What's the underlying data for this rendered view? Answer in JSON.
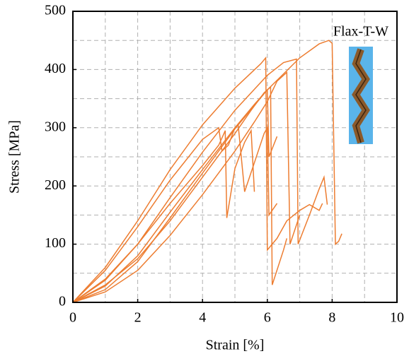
{
  "chart_data": {
    "type": "line",
    "x_label": "Strain [%]",
    "y_label": "Stress [MPa]",
    "annotation": "Flax-T-W",
    "xlim": [
      0,
      10
    ],
    "ylim": [
      0,
      500
    ],
    "xticks": [
      0,
      2,
      4,
      6,
      8,
      10
    ],
    "yticks": [
      0,
      100,
      200,
      300,
      400,
      500
    ],
    "x_minor_grid": [
      1,
      3,
      5,
      7,
      9
    ],
    "y_minor_grid": [
      50,
      150,
      250,
      350,
      450
    ],
    "grid": true,
    "series": [
      {
        "color": "#ed7d31",
        "x": [
          0,
          1,
          2,
          3,
          4,
          5,
          6,
          7,
          7.6,
          7.9,
          8.0,
          8.1,
          8.2,
          8.3
        ],
        "values": [
          0,
          22,
          70,
          145,
          222,
          298,
          365,
          420,
          444,
          450,
          445,
          100,
          105,
          118
        ]
      },
      {
        "color": "#ed7d31",
        "x": [
          0,
          1,
          2,
          3,
          4,
          5,
          5.8,
          5.95,
          6.0,
          6.3,
          6.6,
          7.0,
          7.3,
          7.6,
          7.7
        ],
        "values": [
          0,
          60,
          140,
          228,
          305,
          368,
          410,
          420,
          90,
          110,
          140,
          158,
          168,
          158,
          170
        ]
      },
      {
        "color": "#ed7d31",
        "x": [
          0,
          1,
          2,
          3,
          4,
          5,
          6,
          6.5,
          6.9,
          6.95,
          7.3,
          7.6,
          7.75,
          7.85
        ],
        "values": [
          0,
          38,
          100,
          180,
          258,
          330,
          390,
          412,
          418,
          100,
          150,
          195,
          215,
          168
        ]
      },
      {
        "color": "#ed7d31",
        "x": [
          0,
          1,
          2,
          3,
          4,
          4.5,
          4.6,
          4.8,
          5.0,
          5.1,
          5.3,
          5.6,
          5.9,
          6.0,
          6.05,
          6.3
        ],
        "values": [
          0,
          55,
          130,
          210,
          280,
          300,
          260,
          270,
          300,
          305,
          190,
          240,
          290,
          300,
          150,
          170
        ]
      },
      {
        "color": "#ed7d31",
        "x": [
          0,
          1,
          2,
          3,
          4,
          5,
          5.5,
          5.9,
          6.1,
          6.15,
          6.5,
          6.6
        ],
        "values": [
          0,
          30,
          75,
          140,
          215,
          290,
          330,
          360,
          370,
          30,
          90,
          110
        ]
      },
      {
        "color": "#ed7d31",
        "x": [
          0,
          1,
          2,
          3,
          4,
          4.5,
          4.7,
          4.75,
          5.0,
          5.3,
          5.5,
          5.6
        ],
        "values": [
          0,
          40,
          100,
          170,
          235,
          270,
          295,
          145,
          230,
          275,
          295,
          190
        ]
      },
      {
        "color": "#ed7d31",
        "x": [
          0,
          1,
          2,
          3,
          4,
          5,
          5.6,
          6.0,
          6.3,
          6.6,
          6.7,
          7.0
        ],
        "values": [
          0,
          18,
          55,
          115,
          185,
          260,
          310,
          345,
          380,
          395,
          100,
          150
        ]
      },
      {
        "color": "#ed7d31",
        "x": [
          0,
          1,
          2,
          3,
          4,
          5,
          5.6,
          6.0,
          6.05,
          6.3
        ],
        "values": [
          0,
          28,
          80,
          155,
          228,
          300,
          340,
          365,
          250,
          285
        ]
      }
    ]
  }
}
